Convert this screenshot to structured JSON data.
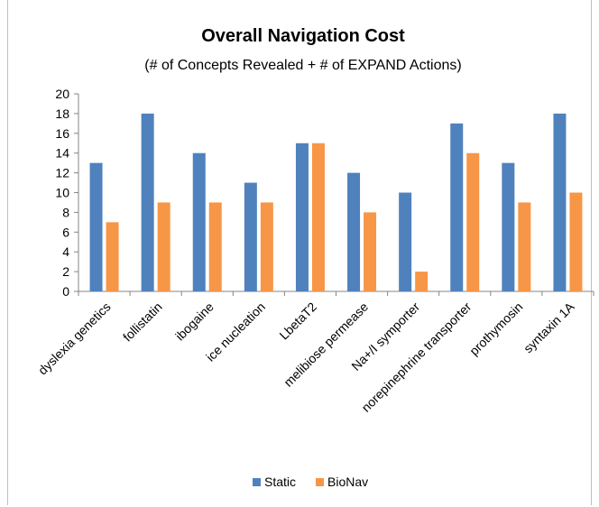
{
  "chart_data": {
    "type": "bar",
    "title": "Overall Navigation Cost",
    "subtitle": "(# of Concepts Revealed + # of EXPAND Actions)",
    "xlabel": "",
    "ylabel": "",
    "ylim": [
      0,
      20
    ],
    "ytick_step": 2,
    "grid": false,
    "legend_position": "bottom",
    "categories": [
      "dyslexia genetics",
      "follistatin",
      "ibogaine",
      "ice nucleation",
      "LbetaT2",
      "melibiose permease",
      "Na+/I symporter",
      "norepinephrine transporter",
      "prothymosin",
      "syntaxin 1A"
    ],
    "series": [
      {
        "name": "Static",
        "color": "#4f81bd",
        "values": [
          13,
          18,
          14,
          11,
          15,
          12,
          10,
          17,
          13,
          18
        ]
      },
      {
        "name": "BioNav",
        "color": "#f79646",
        "values": [
          7,
          9,
          9,
          9,
          15,
          8,
          2,
          14,
          9,
          10
        ]
      }
    ]
  }
}
